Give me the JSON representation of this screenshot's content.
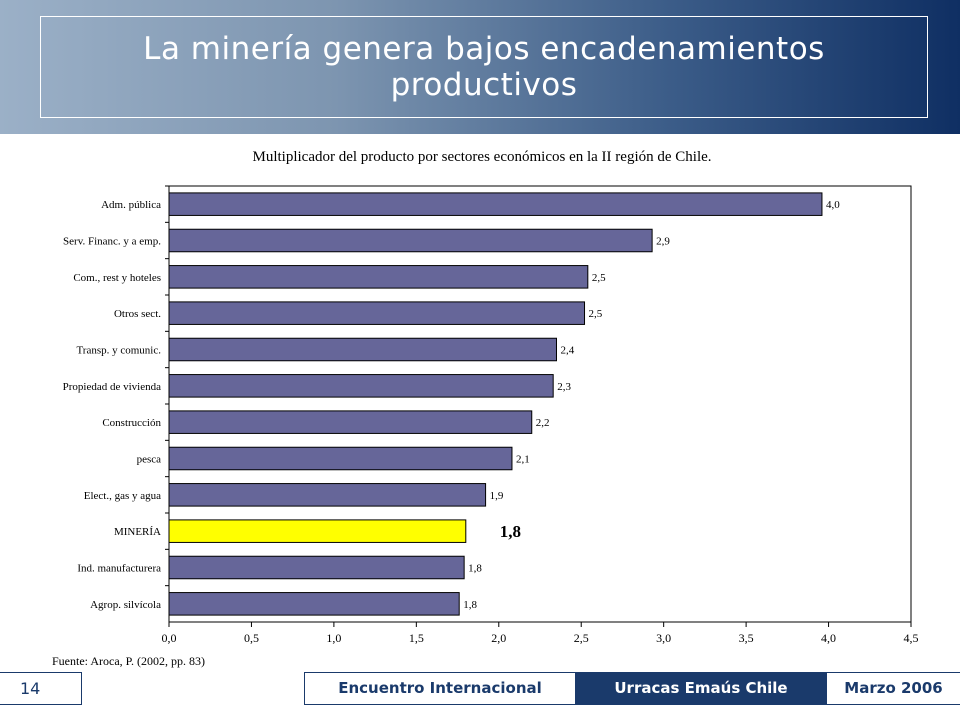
{
  "slide": {
    "title": "La minería genera bajos encadenamientos productivos",
    "page_number": "14",
    "footer": {
      "left": "Encuentro Internacional",
      "middle": "Urracas Emaús Chile",
      "right": "Marzo 2006"
    },
    "colors": {
      "header_dark": "#0f2f63",
      "header_light": "#9bb0c7",
      "footer_accent": "#1a3a6b"
    }
  },
  "chart_data": {
    "type": "bar",
    "orientation": "horizontal",
    "title": "Multiplicador del producto por  sectores económicos en la II región de Chile.",
    "source": "Fuente: Aroca, P. (2002, pp. 83)",
    "categories": [
      "Adm. pública",
      "Serv. Financ. y a emp.",
      "Com., rest y hoteles",
      "Otros sect.",
      "Transp. y comunic.",
      "Propiedad de vivienda",
      "Construcción",
      "pesca",
      "Elect., gas y agua",
      "MINERÍA",
      "Ind. manufacturera",
      "Agrop. silvícola"
    ],
    "values": [
      3.96,
      2.93,
      2.54,
      2.52,
      2.35,
      2.33,
      2.2,
      2.08,
      1.92,
      1.8,
      1.79,
      1.76
    ],
    "value_labels": [
      "4,0",
      "2,9",
      "2,5",
      "2,5",
      "2,4",
      "2,3",
      "2,2",
      "2,1",
      "1,9",
      "1,8",
      "1,8",
      "1,8"
    ],
    "highlight_index": 9,
    "bar_color": "#666699",
    "highlight_color": "#ffff00",
    "xlim": [
      0,
      4.5
    ],
    "xticks": [
      "0,0",
      "0,5",
      "1,0",
      "1,5",
      "2,0",
      "2,5",
      "3,0",
      "3,5",
      "4,0",
      "4,5"
    ],
    "grid": false,
    "legend": "none"
  }
}
